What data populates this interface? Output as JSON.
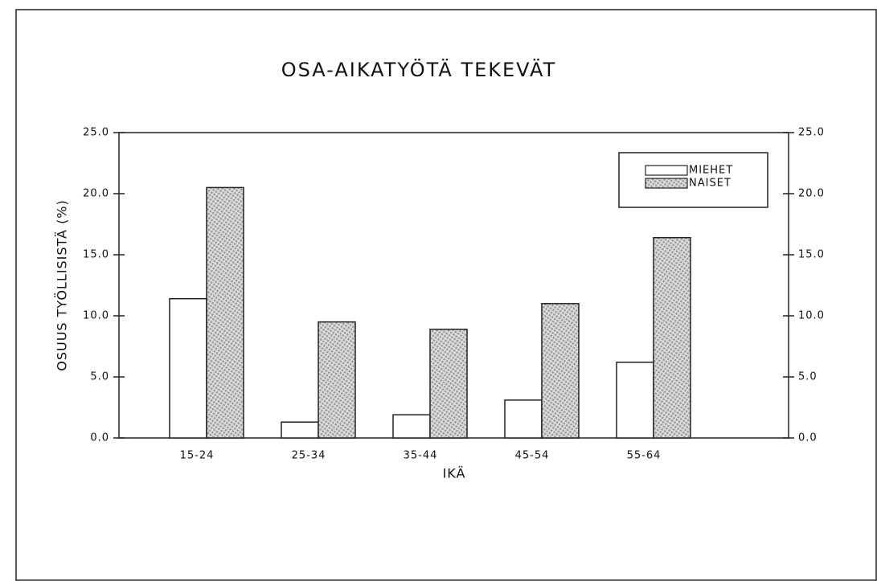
{
  "chart_data": {
    "type": "bar",
    "title": "OSA-AIKATYÖTÄ TEKEVÄT",
    "x_label": "IKÄ",
    "y_label": "OSUUS TYÖLLISISTÄ (%)",
    "categories": [
      "15-24",
      "25-34",
      "35-44",
      "45-54",
      "55-64"
    ],
    "series": [
      {
        "name": "MIEHET",
        "color": "#ffffff",
        "values": [
          11.4,
          1.3,
          1.9,
          3.1,
          6.2
        ]
      },
      {
        "name": "NAISET",
        "color": "#9a9a9a",
        "values": [
          20.5,
          9.5,
          8.9,
          11.0,
          16.4
        ]
      }
    ],
    "ylim": [
      0,
      25
    ],
    "yticks": [
      {
        "value": 0,
        "label": "0.0"
      },
      {
        "value": 5,
        "label": "5.0"
      },
      {
        "value": 10,
        "label": "10.0"
      },
      {
        "value": 15,
        "label": "15.0"
      },
      {
        "value": 20,
        "label": "20.0"
      },
      {
        "value": 25,
        "label": "25.0"
      }
    ],
    "y2lim": [
      0,
      25
    ],
    "y2ticks": [
      {
        "value": 0,
        "label": "0.0"
      },
      {
        "value": 5,
        "label": "5.0"
      },
      {
        "value": 10,
        "label": "10.0"
      },
      {
        "value": 15,
        "label": "15.0"
      },
      {
        "value": 20,
        "label": "20.0"
      },
      {
        "value": 25,
        "label": "25.0"
      }
    ],
    "legend": "upper right",
    "grid": false
  }
}
